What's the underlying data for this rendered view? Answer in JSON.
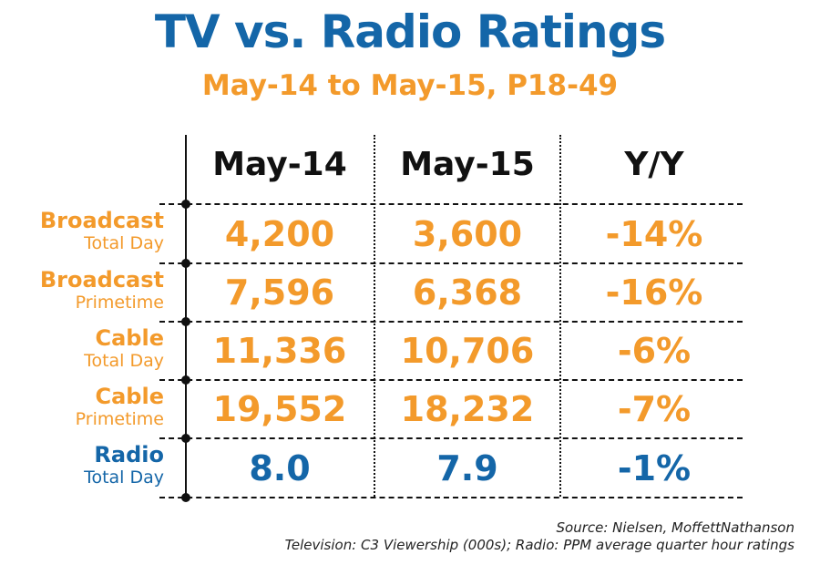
{
  "chart_data": {
    "type": "table",
    "title": "TV vs. Radio Ratings",
    "subtitle": "May-14 to May-15, P18-49",
    "columns": [
      "May-14",
      "May-15",
      "Y/Y"
    ],
    "rows": [
      {
        "label": "Broadcast",
        "sublabel": "Total Day",
        "values": [
          "4,200",
          "3,600",
          "-14%"
        ],
        "color": "#f39a2b"
      },
      {
        "label": "Broadcast",
        "sublabel": "Primetime",
        "values": [
          "7,596",
          "6,368",
          "-16%"
        ],
        "color": "#f39a2b"
      },
      {
        "label": "Cable",
        "sublabel": "Total Day",
        "values": [
          "11,336",
          "10,706",
          "-6%"
        ],
        "color": "#f39a2b"
      },
      {
        "label": "Cable",
        "sublabel": "Primetime",
        "values": [
          "19,552",
          "18,232",
          "-7%"
        ],
        "color": "#f39a2b"
      },
      {
        "label": "Radio",
        "sublabel": "Total Day",
        "values": [
          "8.0",
          "7.9",
          "-1%"
        ],
        "color": "#1466a8"
      }
    ],
    "notes": [
      "Source: Nielsen, MoffettNathanson",
      "Television: C3 Viewership (000s); Radio: PPM average quarter hour ratings"
    ]
  },
  "colors": {
    "title": "#1466a8",
    "accent": "#f39a2b",
    "radio": "#1466a8",
    "lines": "#111111"
  }
}
